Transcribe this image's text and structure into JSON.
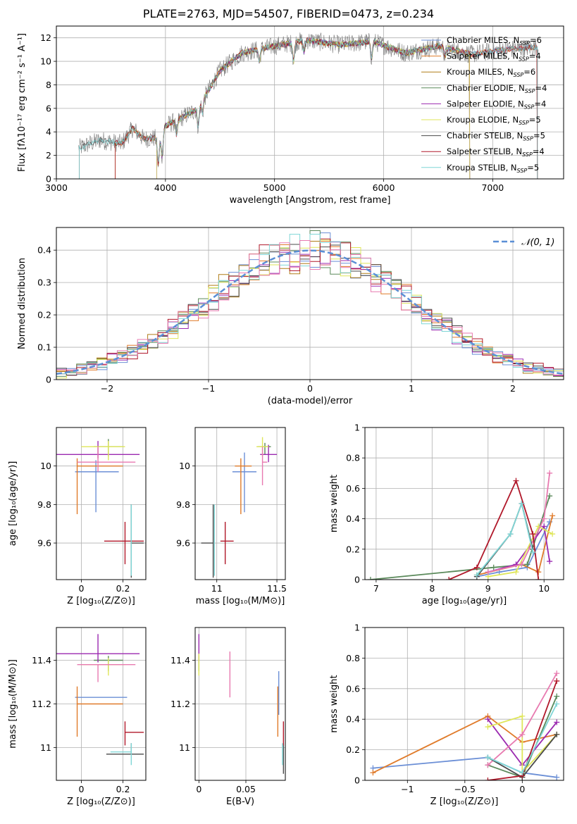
{
  "figure_title": "PLATE=2763, MJD=54507, FIBERID=0473, z=0.234",
  "colors": {
    "Chabrier MILES": "#6b8fd6",
    "Salpeter MILES": "#e07b2a",
    "Kroupa MILES": "#b07d18",
    "Chabrier ELODIE": "#5b8a5b",
    "Salpeter ELODIE": "#9b2ab0",
    "Kroupa ELODIE": "#dfe65a",
    "Chabrier STELIB": "#4a4a4a",
    "Salpeter STELIB": "#b0182a",
    "Kroupa STELIB": "#7fd6d6",
    "Pink": "#e87ab0",
    "Gaussian": "#5b8fd6"
  },
  "chart_data": [
    {
      "id": "spectrum",
      "type": "line",
      "xlabel": "wavelength [Angstrom, rest frame]",
      "ylabel": "Flux [fλ10⁻¹⁷ erg cm⁻² s⁻¹ A⁻¹]",
      "xlim": [
        3000,
        7650
      ],
      "ylim": [
        0,
        13
      ],
      "xticks": [
        3000,
        4000,
        5000,
        6000,
        7000
      ],
      "yticks": [
        0,
        2,
        4,
        6,
        8,
        10,
        12
      ],
      "legend": [
        "Chabrier MILES, N_SSP=6",
        "Salpeter MILES, N_SSP=4",
        "Kroupa MILES, N_SSP=6",
        "Chabrier ELODIE, N_SSP=4",
        "Salpeter ELODIE, N_SSP=4",
        "Kroupa ELODIE, N_SSP=5",
        "Chabrier STELIB, N_SSP=5",
        "Salpeter STELIB, N_SSP=4",
        "Kroupa STELIB, N_SSP=5"
      ],
      "legend_position": "right",
      "continuum": [
        [
          3200,
          2.6
        ],
        [
          3400,
          3.3
        ],
        [
          3600,
          3.0
        ],
        [
          3700,
          4.3
        ],
        [
          3800,
          3.4
        ],
        [
          3950,
          3.5
        ],
        [
          4000,
          4.5
        ],
        [
          4150,
          5.2
        ],
        [
          4300,
          6.0
        ],
        [
          4400,
          7.6
        ],
        [
          4500,
          9.2
        ],
        [
          4700,
          10.7
        ],
        [
          5000,
          11.3
        ],
        [
          5300,
          11.8
        ],
        [
          5600,
          11.4
        ],
        [
          5900,
          11.7
        ],
        [
          6200,
          10.7
        ],
        [
          6500,
          11.3
        ],
        [
          6800,
          10.6
        ],
        [
          7100,
          11.0
        ],
        [
          7400,
          11.2
        ]
      ]
    },
    {
      "id": "residuals",
      "type": "bar",
      "xlabel": "(data-model)/error",
      "ylabel": "Normed distribution",
      "xlim": [
        -2.5,
        2.5
      ],
      "ylim": [
        0,
        0.47
      ],
      "xticks": [
        -2,
        -1,
        0,
        1,
        2
      ],
      "yticks": [
        0.0,
        0.1,
        0.2,
        0.3,
        0.4
      ],
      "legend": [
        "𝒩(0, 1)"
      ],
      "bin_width": 0.1,
      "bins_start": -2.5
    },
    {
      "id": "age_vs_Z",
      "type": "scatter",
      "xlabel": "Z [log₁₀(Z/Z⊙)]",
      "ylabel": "age  [log₁₀(age/yr)]",
      "xlim": [
        -0.12,
        0.31
      ],
      "ylim": [
        9.41,
        10.2
      ],
      "xticks": [
        0.0,
        0.2
      ],
      "yticks": [
        9.6,
        9.8,
        10.0
      ],
      "points": [
        {
          "model": "Chabrier MILES",
          "x": 0.07,
          "y": 9.97,
          "xerr": [
            0.1,
            0.11
          ],
          "yerr": [
            0.21,
            0.06
          ]
        },
        {
          "model": "Salpeter MILES",
          "x": -0.02,
          "y": 10.0,
          "xerr": [
            0.0,
            0.22
          ],
          "yerr": [
            0.25,
            0.04
          ]
        },
        {
          "model": "Chabrier ELODIE",
          "x": 0.13,
          "y": 10.1,
          "xerr": [
            0.07,
            0.07
          ],
          "yerr": [
            0.05,
            0.04
          ]
        },
        {
          "model": "Salpeter ELODIE",
          "x": 0.08,
          "y": 10.06,
          "xerr": [
            0.2,
            0.2
          ],
          "yerr": [
            0.02,
            0.07
          ]
        },
        {
          "model": "Kroupa ELODIE",
          "x": 0.13,
          "y": 10.1,
          "xerr": [
            0.13,
            0.08
          ],
          "yerr": [
            0.07,
            0.03
          ]
        },
        {
          "model": "Pink",
          "x": 0.08,
          "y": 10.02,
          "xerr": [
            0.1,
            0.18
          ],
          "yerr": [
            0.05,
            0.08
          ]
        },
        {
          "model": "Chabrier STELIB",
          "x": 0.24,
          "y": 9.6,
          "xerr": [
            0.0,
            0.06
          ],
          "yerr": [
            0.18,
            0.2
          ]
        },
        {
          "model": "Salpeter STELIB",
          "x": 0.21,
          "y": 9.61,
          "xerr": [
            0.1,
            0.09
          ],
          "yerr": [
            0.12,
            0.1
          ]
        },
        {
          "model": "Kroupa STELIB",
          "x": 0.24,
          "y": 9.6,
          "xerr": [
            0.0,
            0.0
          ],
          "yerr": [
            0.17,
            0.2
          ]
        }
      ]
    },
    {
      "id": "age_vs_mass",
      "type": "scatter",
      "xlabel": "mass [log₁₀(M/M⊙)]",
      "ylabel": "",
      "xlim": [
        10.82,
        11.57
      ],
      "ylim": [
        9.41,
        10.2
      ],
      "xticks": [
        11.0,
        11.5
      ],
      "yticks": [
        9.6,
        9.8,
        10.0
      ],
      "points": [
        {
          "model": "Chabrier MILES",
          "x": 11.23,
          "y": 9.97,
          "xerr": [
            0.1,
            0.1
          ],
          "yerr": [
            0.21,
            0.1
          ]
        },
        {
          "model": "Salpeter MILES",
          "x": 11.2,
          "y": 10.0,
          "xerr": [
            0.05,
            0.09
          ],
          "yerr": [
            0.25,
            0.04
          ]
        },
        {
          "model": "Chabrier ELODIE",
          "x": 11.4,
          "y": 10.1,
          "xerr": [
            0.06,
            0.05
          ],
          "yerr": [
            0.04,
            0.02
          ]
        },
        {
          "model": "Salpeter ELODIE",
          "x": 11.43,
          "y": 10.06,
          "xerr": [
            0.07,
            0.07
          ],
          "yerr": [
            0.04,
            0.05
          ]
        },
        {
          "model": "Kroupa ELODIE",
          "x": 11.38,
          "y": 10.1,
          "xerr": [
            0.05,
            0.05
          ],
          "yerr": [
            0.05,
            0.05
          ]
        },
        {
          "model": "Pink",
          "x": 11.38,
          "y": 10.02,
          "xerr": [
            0.0,
            0.04
          ],
          "yerr": [
            0.12,
            0.08
          ]
        },
        {
          "model": "Chabrier STELIB",
          "x": 10.97,
          "y": 9.6,
          "xerr": [
            0.1,
            0.0
          ],
          "yerr": [
            0.18,
            0.2
          ]
        },
        {
          "model": "Salpeter STELIB",
          "x": 11.07,
          "y": 9.61,
          "xerr": [
            0.04,
            0.07
          ],
          "yerr": [
            0.12,
            0.1
          ]
        },
        {
          "model": "Kroupa STELIB",
          "x": 10.98,
          "y": 9.6,
          "xerr": [
            0.0,
            0.0
          ],
          "yerr": [
            0.17,
            0.2
          ]
        }
      ]
    },
    {
      "id": "weight_vs_age",
      "type": "line",
      "xlabel": "age  [log₁₀(age/yr)]",
      "ylabel": "mass weight",
      "xlim": [
        6.8,
        10.35
      ],
      "ylim": [
        0,
        1.0
      ],
      "xticks": [
        7,
        8,
        9,
        10
      ],
      "yticks": [
        0.0,
        0.2,
        0.4,
        0.6,
        0.8,
        1.0
      ],
      "series": [
        {
          "model": "Chabrier MILES",
          "points": [
            [
              8.8,
              0.02
            ],
            [
              9.2,
              0.05
            ],
            [
              9.7,
              0.08
            ],
            [
              10.1,
              0.38
            ]
          ]
        },
        {
          "model": "Salpeter MILES",
          "points": [
            [
              8.8,
              0.03
            ],
            [
              9.6,
              0.1
            ],
            [
              9.9,
              0.05
            ],
            [
              10.15,
              0.42
            ]
          ]
        },
        {
          "model": "Chabrier ELODIE",
          "points": [
            [
              6.9,
              0.0
            ],
            [
              9.1,
              0.08
            ],
            [
              9.7,
              0.1
            ],
            [
              10.1,
              0.55
            ]
          ]
        },
        {
          "model": "Salpeter ELODIE",
          "points": [
            [
              9.0,
              0.05
            ],
            [
              9.5,
              0.1
            ],
            [
              10.0,
              0.35
            ],
            [
              10.1,
              0.12
            ]
          ]
        },
        {
          "model": "Kroupa ELODIE",
          "points": [
            [
              9.0,
              0.02
            ],
            [
              9.5,
              0.05
            ],
            [
              9.9,
              0.35
            ],
            [
              10.15,
              0.3
            ]
          ]
        },
        {
          "model": "Pink",
          "points": [
            [
              9.0,
              0.05
            ],
            [
              9.6,
              0.1
            ],
            [
              10.0,
              0.4
            ],
            [
              10.1,
              0.7
            ]
          ]
        },
        {
          "model": "Chabrier STELIB",
          "points": [
            [
              8.8,
              0.02
            ],
            [
              9.4,
              0.3
            ],
            [
              9.6,
              0.5
            ],
            [
              9.8,
              0.2
            ]
          ]
        },
        {
          "model": "Salpeter STELIB",
          "points": [
            [
              8.3,
              0.0
            ],
            [
              8.8,
              0.08
            ],
            [
              9.5,
              0.65
            ],
            [
              9.8,
              0.3
            ],
            [
              9.9,
              0.0
            ]
          ]
        },
        {
          "model": "Kroupa STELIB",
          "points": [
            [
              8.8,
              0.03
            ],
            [
              9.4,
              0.3
            ],
            [
              9.6,
              0.5
            ],
            [
              9.8,
              0.18
            ]
          ]
        }
      ]
    },
    {
      "id": "mass_vs_Z",
      "type": "scatter",
      "xlabel": "Z [log₁₀(Z/Z⊙)]",
      "ylabel": "mass [log₁₀(M/M⊙)]",
      "xlim": [
        -0.12,
        0.31
      ],
      "ylim": [
        10.85,
        11.55
      ],
      "xticks": [
        0.0,
        0.2
      ],
      "yticks": [
        11.0,
        11.2,
        11.4
      ],
      "points": [
        {
          "model": "Chabrier MILES",
          "x": 0.07,
          "y": 11.23,
          "xerr": [
            0.1,
            0.15
          ],
          "yerr": [
            0.0,
            0.0
          ]
        },
        {
          "model": "Salpeter MILES",
          "x": -0.02,
          "y": 11.2,
          "xerr": [
            0.0,
            0.22
          ],
          "yerr": [
            0.15,
            0.08
          ]
        },
        {
          "model": "Chabrier ELODIE",
          "x": 0.13,
          "y": 11.4,
          "xerr": [
            0.07,
            0.07
          ],
          "yerr": [
            0.05,
            0.02
          ]
        },
        {
          "model": "Salpeter ELODIE",
          "x": 0.08,
          "y": 11.43,
          "xerr": [
            0.2,
            0.2
          ],
          "yerr": [
            0.04,
            0.09
          ]
        },
        {
          "model": "Kroupa ELODIE",
          "x": 0.13,
          "y": 11.38,
          "xerr": [
            0.13,
            0.08
          ],
          "yerr": [
            0.05,
            0.03
          ]
        },
        {
          "model": "Pink",
          "x": 0.08,
          "y": 11.38,
          "xerr": [
            0.1,
            0.18
          ],
          "yerr": [
            0.08,
            0.0
          ]
        },
        {
          "model": "Chabrier STELIB",
          "x": 0.24,
          "y": 10.97,
          "xerr": [
            0.12,
            0.06
          ],
          "yerr": [
            0.0,
            0.05
          ]
        },
        {
          "model": "Salpeter STELIB",
          "x": 0.21,
          "y": 11.07,
          "xerr": [
            0.0,
            0.09
          ],
          "yerr": [
            0.06,
            0.05
          ]
        },
        {
          "model": "Kroupa STELIB",
          "x": 0.24,
          "y": 10.98,
          "xerr": [
            0.1,
            0.0
          ],
          "yerr": [
            0.06,
            0.04
          ]
        }
      ]
    },
    {
      "id": "mass_vs_EBV",
      "type": "scatter",
      "xlabel": "E(B-V)",
      "ylabel": "",
      "xlim": [
        -0.004,
        0.092
      ],
      "ylim": [
        10.85,
        11.55
      ],
      "xticks": [
        0.0,
        0.05
      ],
      "yticks": [
        11.0,
        11.2,
        11.4
      ],
      "points": [
        {
          "model": "Chabrier MILES",
          "x": 0.085,
          "y": 11.23,
          "yerr": [
            0.08,
            0.12
          ]
        },
        {
          "model": "Salpeter MILES",
          "x": 0.084,
          "y": 11.2,
          "yerr": [
            0.15,
            0.08
          ]
        },
        {
          "model": "Chabrier ELODIE",
          "x": 0.0,
          "y": 11.4,
          "yerr": [
            0.05,
            0.02
          ]
        },
        {
          "model": "Salpeter ELODIE",
          "x": 0.0,
          "y": 11.43,
          "yerr": [
            0.04,
            0.09
          ]
        },
        {
          "model": "Kroupa ELODIE",
          "x": 0.0,
          "y": 11.38,
          "yerr": [
            0.05,
            0.05
          ]
        },
        {
          "model": "Pink",
          "x": 0.033,
          "y": 11.38,
          "yerr": [
            0.15,
            0.06
          ]
        },
        {
          "model": "Chabrier STELIB",
          "x": 0.09,
          "y": 10.97,
          "yerr": [
            0.09,
            0.05
          ]
        },
        {
          "model": "Salpeter STELIB",
          "x": 0.09,
          "y": 11.07,
          "yerr": [
            0.06,
            0.05
          ]
        },
        {
          "model": "Kroupa STELIB",
          "x": 0.089,
          "y": 10.98,
          "yerr": [
            0.06,
            0.04
          ]
        }
      ]
    },
    {
      "id": "weight_vs_Z",
      "type": "line",
      "xlabel": "Z [log₁₀(Z/Z⊙)]",
      "ylabel": "mass weight",
      "xlim": [
        -1.37,
        0.36
      ],
      "ylim": [
        0,
        1.0
      ],
      "xticks": [
        -1.0,
        -0.5,
        0.0
      ],
      "yticks": [
        0.0,
        0.2,
        0.4,
        0.6,
        0.8,
        1.0
      ],
      "series": [
        {
          "model": "Chabrier MILES",
          "points": [
            [
              -1.3,
              0.08
            ],
            [
              -0.3,
              0.15
            ],
            [
              0.0,
              0.05
            ],
            [
              0.3,
              0.02
            ]
          ]
        },
        {
          "model": "Salpeter MILES",
          "points": [
            [
              -1.3,
              0.05
            ],
            [
              -0.3,
              0.42
            ],
            [
              0.0,
              0.25
            ],
            [
              0.3,
              0.3
            ]
          ]
        },
        {
          "model": "Chabrier ELODIE",
          "points": [
            [
              -0.3,
              0.1
            ],
            [
              0.0,
              0.02
            ],
            [
              0.3,
              0.55
            ]
          ]
        },
        {
          "model": "Salpeter ELODIE",
          "points": [
            [
              -0.3,
              0.4
            ],
            [
              0.0,
              0.1
            ],
            [
              0.3,
              0.38
            ]
          ]
        },
        {
          "model": "Kroupa ELODIE",
          "points": [
            [
              -0.3,
              0.35
            ],
            [
              0.0,
              0.42
            ],
            [
              0.0,
              0.05
            ],
            [
              0.3,
              0.3
            ]
          ]
        },
        {
          "model": "Pink",
          "points": [
            [
              -0.3,
              0.1
            ],
            [
              0.0,
              0.3
            ],
            [
              0.3,
              0.7
            ]
          ]
        },
        {
          "model": "Chabrier STELIB",
          "points": [
            [
              -0.3,
              0.15
            ],
            [
              0.0,
              0.02
            ],
            [
              0.3,
              0.3
            ]
          ]
        },
        {
          "model": "Salpeter STELIB",
          "points": [
            [
              -0.3,
              0.0
            ],
            [
              0.0,
              0.03
            ],
            [
              0.3,
              0.65
            ]
          ]
        },
        {
          "model": "Kroupa STELIB",
          "points": [
            [
              -0.3,
              0.15
            ],
            [
              0.0,
              0.05
            ],
            [
              0.3,
              0.5
            ]
          ]
        }
      ]
    }
  ]
}
